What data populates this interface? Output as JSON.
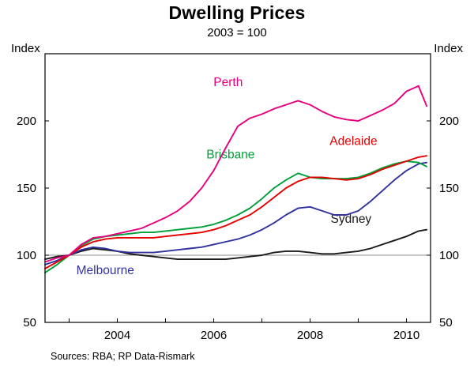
{
  "header": {
    "title": "Dwelling Prices",
    "subtitle": "2003 = 100"
  },
  "axis": {
    "index_left": "Index",
    "index_right": "Index"
  },
  "footer": {
    "sources": "Sources: RBA; RP Data-Rismark"
  },
  "chart_data": {
    "type": "line",
    "title": "Dwelling Prices",
    "subtitle": "2003 = 100",
    "ylabel": "Index",
    "xlabel": "",
    "xlim": [
      2002.5,
      2010.5
    ],
    "ylim": [
      50,
      250
    ],
    "yticks": [
      50,
      100,
      150,
      200
    ],
    "xticks": [
      2004,
      2006,
      2008,
      2010
    ],
    "xticks_minor": [
      2003,
      2004,
      2005,
      2006,
      2007,
      2008,
      2009,
      2010
    ],
    "refline": 100,
    "grid": "off",
    "legend_position": "labels-on-lines",
    "x": [
      2002.5,
      2002.75,
      2003,
      2003.25,
      2003.5,
      2003.75,
      2004,
      2004.25,
      2004.5,
      2004.75,
      2005,
      2005.25,
      2005.5,
      2005.75,
      2006,
      2006.25,
      2006.5,
      2006.75,
      2007,
      2007.25,
      2007.5,
      2007.75,
      2008,
      2008.25,
      2008.5,
      2008.75,
      2009,
      2009.25,
      2009.5,
      2009.75,
      2010,
      2010.25,
      2010.42
    ],
    "series": [
      {
        "name": "Sydney",
        "color": "#1a1a1a",
        "label_pos": [
          2008.85,
          124
        ],
        "values": [
          97,
          99,
          100,
          103,
          105,
          104,
          103,
          101,
          100,
          99,
          98,
          97,
          97,
          97,
          97,
          97,
          98,
          99,
          100,
          102,
          103,
          103,
          102,
          101,
          101,
          102,
          103,
          105,
          108,
          111,
          114,
          118,
          119
        ]
      },
      {
        "name": "Melbourne",
        "color": "#32329f",
        "label_pos": [
          2003.75,
          86
        ],
        "values": [
          93,
          96,
          100,
          104,
          106,
          105,
          103,
          102,
          102,
          102,
          103,
          104,
          105,
          106,
          108,
          110,
          112,
          115,
          119,
          124,
          130,
          135,
          136,
          133,
          130,
          130,
          133,
          140,
          148,
          156,
          163,
          168,
          169
        ]
      },
      {
        "name": "Brisbane",
        "color": "#00a03a",
        "label_pos": [
          2006.35,
          172
        ],
        "values": [
          87,
          93,
          100,
          107,
          112,
          114,
          115,
          116,
          117,
          117,
          118,
          119,
          120,
          121,
          123,
          126,
          130,
          135,
          142,
          150,
          156,
          161,
          158,
          157,
          157,
          157,
          158,
          161,
          165,
          168,
          170,
          169,
          166
        ]
      },
      {
        "name": "Adelaide",
        "color": "#e60000",
        "label_pos": [
          2008.9,
          182
        ],
        "values": [
          90,
          95,
          100,
          106,
          110,
          112,
          113,
          113,
          113,
          113,
          114,
          115,
          116,
          117,
          119,
          122,
          126,
          130,
          136,
          143,
          150,
          155,
          158,
          158,
          157,
          156,
          157,
          160,
          164,
          167,
          170,
          173,
          174
        ]
      },
      {
        "name": "Perth",
        "color": "#e6007e",
        "label_pos": [
          2006.3,
          226
        ],
        "values": [
          95,
          98,
          100,
          108,
          113,
          114,
          116,
          118,
          120,
          124,
          128,
          133,
          140,
          150,
          163,
          180,
          196,
          202,
          205,
          209,
          212,
          215,
          212,
          207,
          203,
          201,
          200,
          204,
          208,
          213,
          222,
          226,
          211
        ]
      }
    ]
  }
}
